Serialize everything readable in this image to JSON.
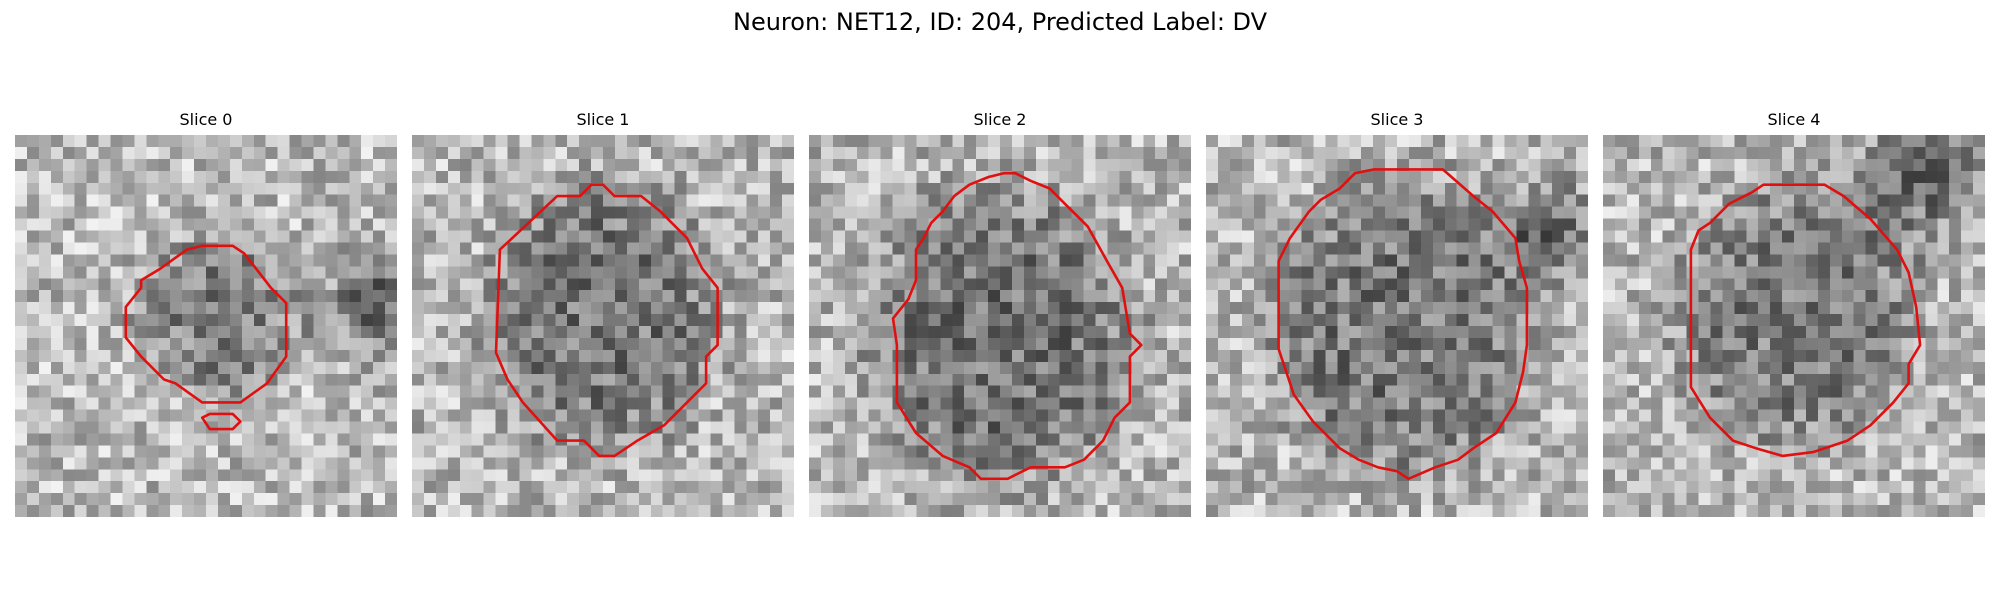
{
  "figure": {
    "title": "Neuron: NET12, ID: 204, Predicted Label: DV"
  },
  "colors": {
    "contour": "#e01010",
    "background": "#ffffff"
  },
  "slices": [
    {
      "label": "Slice 0"
    },
    {
      "label": "Slice 1"
    },
    {
      "label": "Slice 2"
    },
    {
      "label": "Slice 3"
    },
    {
      "label": "Slice 4"
    }
  ]
}
